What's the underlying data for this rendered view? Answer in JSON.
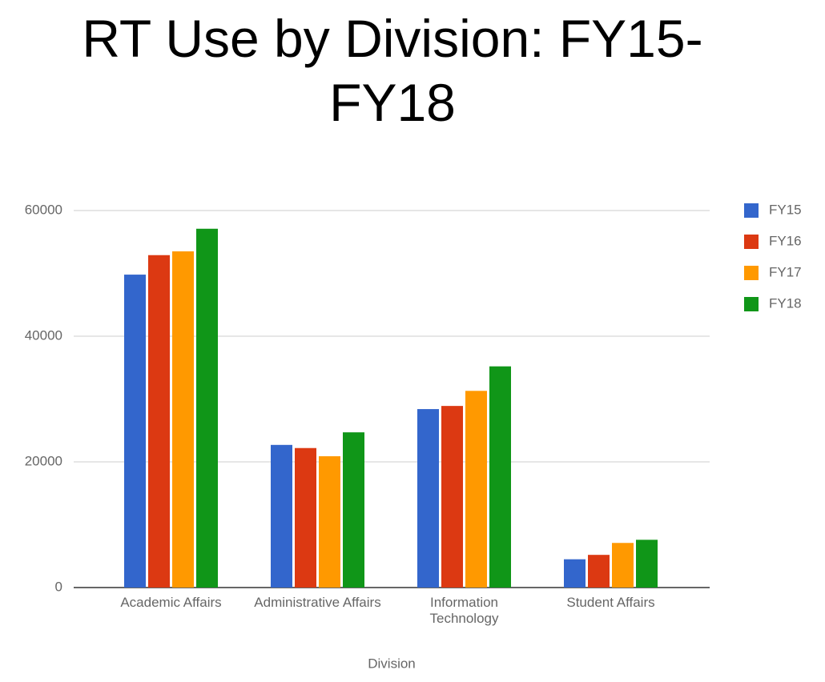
{
  "chart_data": {
    "type": "bar",
    "title": "RT Use by Division: FY15-FY18",
    "x_label": "Division",
    "categories": [
      "Academic Affairs",
      "Administrative Affairs",
      "Information Technology",
      "Student Affairs"
    ],
    "series": [
      {
        "name": "FY15",
        "color": "#3366cc",
        "values": [
          49800,
          22700,
          28400,
          4500
        ]
      },
      {
        "name": "FY16",
        "color": "#dc3912",
        "values": [
          52900,
          22200,
          28900,
          5200
        ]
      },
      {
        "name": "FY17",
        "color": "#ff9900",
        "values": [
          53500,
          20900,
          31300,
          7100
        ]
      },
      {
        "name": "FY18",
        "color": "#109618",
        "values": [
          57100,
          24700,
          35200,
          7600
        ]
      }
    ],
    "ylim": [
      0,
      60000
    ],
    "yticks": [
      0,
      20000,
      40000,
      60000
    ],
    "grid": true,
    "legend": "right"
  }
}
